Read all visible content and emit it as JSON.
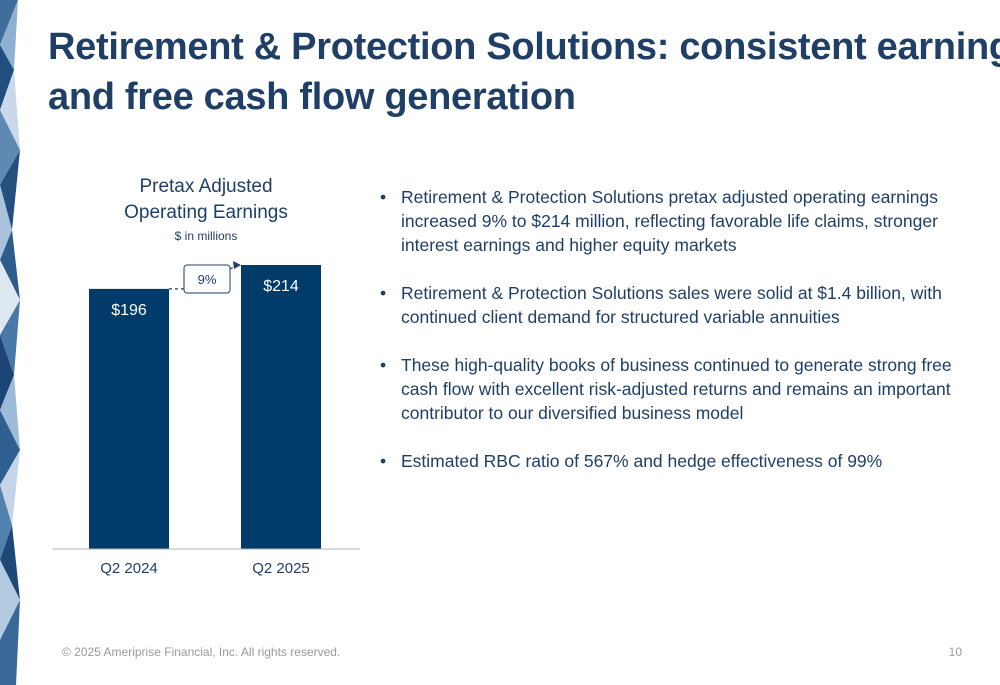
{
  "slide": {
    "title_line1": "Retirement & Protection Solutions: consistent earnings",
    "title_line2": "and free cash flow generation",
    "footer": "© 2025 Ameriprise Financial, Inc. All rights reserved.",
    "page_number": "10"
  },
  "chart_title": {
    "line1": "Pretax Adjusted",
    "line2": "Operating Earnings",
    "units": "$ in millions"
  },
  "chart_data": {
    "type": "bar",
    "title": "Pretax Adjusted Operating Earnings",
    "subtitle": "$ in millions",
    "categories": [
      "Q2 2024",
      "Q2 2025"
    ],
    "values": [
      196,
      214
    ],
    "data_labels": [
      "$196",
      "$214"
    ],
    "annotation": "9%",
    "ylim": [
      0,
      214
    ],
    "grid": false,
    "bar_color": "#003b6a"
  },
  "bullets": [
    {
      "symbol": "•",
      "text": "Retirement & Protection Solutions pretax adjusted operating earnings increased 9% to $214 million, reflecting favorable life claims, stronger interest earnings and higher equity markets"
    },
    {
      "symbol": "•",
      "text": "Retirement & Protection Solutions sales were solid at $1.4 billion, with continued client demand for structured variable annuities"
    },
    {
      "symbol": "•",
      "text": "These high-quality books of business continued to generate strong free cash flow with excellent risk-adjusted returns and remains an important contributor to our diversified business model"
    },
    {
      "symbol": "•",
      "text": "Estimated RBC ratio of 567% and hedge effectiveness of 99%"
    }
  ],
  "colors": {
    "navy": "#1f3f66",
    "bar": "#003b6a",
    "footer_gray": "#9a9a9a"
  }
}
